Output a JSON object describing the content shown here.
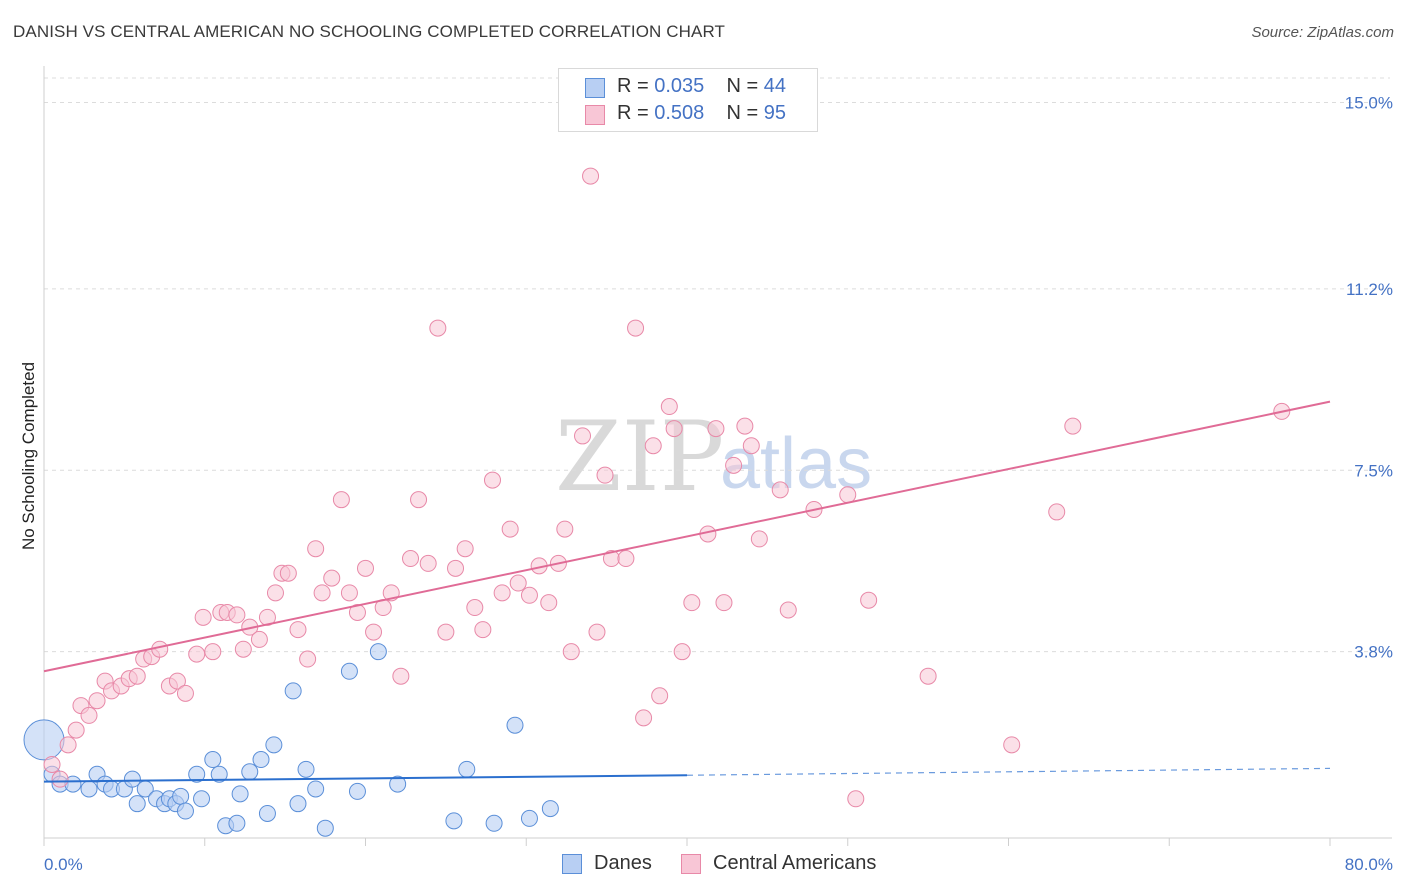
{
  "title": "DANISH VS CENTRAL AMERICAN NO SCHOOLING COMPLETED CORRELATION CHART",
  "source": "Source: ZipAtlas.com",
  "watermark": {
    "zip": "ZIP",
    "atlas": "atlas"
  },
  "legend": {
    "danes": {
      "r_label": "R = ",
      "r_value": "0.035",
      "n_label": "N = ",
      "n_value": "44"
    },
    "central": {
      "r_label": "R = ",
      "r_value": "0.508",
      "n_label": "N = ",
      "n_value": "95"
    }
  },
  "bottom_legend": {
    "danes": "Danes",
    "central": "Central Americans"
  },
  "colors": {
    "danes_fill": "#b8cff3",
    "danes_stroke": "#5b8fd8",
    "danes_line": "#2b6fce",
    "central_fill": "#f8c6d6",
    "central_stroke": "#e889a8",
    "central_line": "#e06b96",
    "tick": "#4472c4"
  },
  "chart_data": {
    "type": "scatter",
    "title": "DANISH VS CENTRAL AMERICAN NO SCHOOLING COMPLETED CORRELATION CHART",
    "xlabel": "",
    "ylabel": "No Schooling Completed",
    "xlim": [
      0,
      80
    ],
    "ylim": [
      0,
      15.5
    ],
    "x_tick_labels": [
      "0.0%",
      "80.0%"
    ],
    "y_ticks": [
      3.8,
      7.5,
      11.2,
      15.0
    ],
    "y_tick_labels": [
      "3.8%",
      "7.5%",
      "11.2%",
      "15.0%"
    ],
    "series": [
      {
        "name": "Danes",
        "trend": {
          "x": [
            0,
            40
          ],
          "y": [
            1.15,
            1.28
          ],
          "dashed_to": [
            80,
            1.42
          ]
        },
        "points": [
          [
            0,
            2.0
          ],
          [
            0.5,
            1.3
          ],
          [
            1,
            1.1
          ],
          [
            1.8,
            1.1
          ],
          [
            2.8,
            1.0
          ],
          [
            3.3,
            1.3
          ],
          [
            3.8,
            1.1
          ],
          [
            4.2,
            1.0
          ],
          [
            5,
            1.0
          ],
          [
            5.5,
            1.2
          ],
          [
            5.8,
            0.7
          ],
          [
            6.3,
            1.0
          ],
          [
            7,
            0.8
          ],
          [
            7.5,
            0.7
          ],
          [
            7.8,
            0.8
          ],
          [
            8.2,
            0.7
          ],
          [
            8.5,
            0.85
          ],
          [
            8.8,
            0.55
          ],
          [
            9.5,
            1.3
          ],
          [
            9.8,
            0.8
          ],
          [
            10.5,
            1.6
          ],
          [
            10.9,
            1.3
          ],
          [
            11.3,
            0.25
          ],
          [
            12.0,
            0.3
          ],
          [
            12.2,
            0.9
          ],
          [
            12.8,
            1.35
          ],
          [
            13.5,
            1.6
          ],
          [
            13.9,
            0.5
          ],
          [
            14.3,
            1.9
          ],
          [
            15.5,
            3.0
          ],
          [
            15.8,
            0.7
          ],
          [
            16.3,
            1.4
          ],
          [
            16.9,
            1.0
          ],
          [
            17.5,
            0.2
          ],
          [
            19.0,
            3.4
          ],
          [
            19.5,
            0.95
          ],
          [
            20.8,
            3.8
          ],
          [
            22.0,
            1.1
          ],
          [
            25.5,
            0.35
          ],
          [
            26.3,
            1.4
          ],
          [
            28.0,
            0.3
          ],
          [
            29.3,
            2.3
          ],
          [
            30.2,
            0.4
          ],
          [
            31.5,
            0.6
          ]
        ]
      },
      {
        "name": "Central Americans",
        "trend": {
          "x": [
            0,
            80
          ],
          "y": [
            3.4,
            8.9
          ]
        },
        "points": [
          [
            0.5,
            1.5
          ],
          [
            1.0,
            1.2
          ],
          [
            1.5,
            1.9
          ],
          [
            2.0,
            2.2
          ],
          [
            2.3,
            2.7
          ],
          [
            2.8,
            2.5
          ],
          [
            3.3,
            2.8
          ],
          [
            3.8,
            3.2
          ],
          [
            4.2,
            3.0
          ],
          [
            4.8,
            3.1
          ],
          [
            5.3,
            3.25
          ],
          [
            5.8,
            3.3
          ],
          [
            6.2,
            3.65
          ],
          [
            6.7,
            3.7
          ],
          [
            7.2,
            3.85
          ],
          [
            7.8,
            3.1
          ],
          [
            8.3,
            3.2
          ],
          [
            8.8,
            2.95
          ],
          [
            9.5,
            3.75
          ],
          [
            9.9,
            4.5
          ],
          [
            10.5,
            3.8
          ],
          [
            11.0,
            4.6
          ],
          [
            11.4,
            4.6
          ],
          [
            12.0,
            4.55
          ],
          [
            12.4,
            3.85
          ],
          [
            12.8,
            4.3
          ],
          [
            13.4,
            4.05
          ],
          [
            13.9,
            4.5
          ],
          [
            14.4,
            5.0
          ],
          [
            14.8,
            5.4
          ],
          [
            15.2,
            5.4
          ],
          [
            15.8,
            4.25
          ],
          [
            16.4,
            3.65
          ],
          [
            16.9,
            5.9
          ],
          [
            17.3,
            5.0
          ],
          [
            17.9,
            5.3
          ],
          [
            18.5,
            6.9
          ],
          [
            19.0,
            5.0
          ],
          [
            19.5,
            4.6
          ],
          [
            20.0,
            5.5
          ],
          [
            20.5,
            4.2
          ],
          [
            21.1,
            4.7
          ],
          [
            21.6,
            5.0
          ],
          [
            22.2,
            3.3
          ],
          [
            22.8,
            5.7
          ],
          [
            23.3,
            6.9
          ],
          [
            23.9,
            5.6
          ],
          [
            24.5,
            10.4
          ],
          [
            25.0,
            4.2
          ],
          [
            25.6,
            5.5
          ],
          [
            26.2,
            5.9
          ],
          [
            26.8,
            4.7
          ],
          [
            27.3,
            4.25
          ],
          [
            27.9,
            7.3
          ],
          [
            28.5,
            5.0
          ],
          [
            29.0,
            6.3
          ],
          [
            29.5,
            5.2
          ],
          [
            30.2,
            4.95
          ],
          [
            30.8,
            5.55
          ],
          [
            31.4,
            4.8
          ],
          [
            32.0,
            5.6
          ],
          [
            32.4,
            6.3
          ],
          [
            32.8,
            3.8
          ],
          [
            33.5,
            8.2
          ],
          [
            34.0,
            13.5
          ],
          [
            34.4,
            4.2
          ],
          [
            34.9,
            7.4
          ],
          [
            35.3,
            5.7
          ],
          [
            36.2,
            5.7
          ],
          [
            36.8,
            10.4
          ],
          [
            37.3,
            2.45
          ],
          [
            37.9,
            8.0
          ],
          [
            38.3,
            2.9
          ],
          [
            38.9,
            8.8
          ],
          [
            39.2,
            8.35
          ],
          [
            39.7,
            3.8
          ],
          [
            40.3,
            4.8
          ],
          [
            41.3,
            6.2
          ],
          [
            41.8,
            8.35
          ],
          [
            42.3,
            4.8
          ],
          [
            42.9,
            7.6
          ],
          [
            43.6,
            8.4
          ],
          [
            44.0,
            8.0
          ],
          [
            44.5,
            6.1
          ],
          [
            45.8,
            7.1
          ],
          [
            46.3,
            4.65
          ],
          [
            47.9,
            6.7
          ],
          [
            50.0,
            7.0
          ],
          [
            50.5,
            0.8
          ],
          [
            51.3,
            4.85
          ],
          [
            55.0,
            3.3
          ],
          [
            60.2,
            1.9
          ],
          [
            63.0,
            6.65
          ],
          [
            64.0,
            8.4
          ],
          [
            77.0,
            8.7
          ]
        ]
      }
    ]
  }
}
